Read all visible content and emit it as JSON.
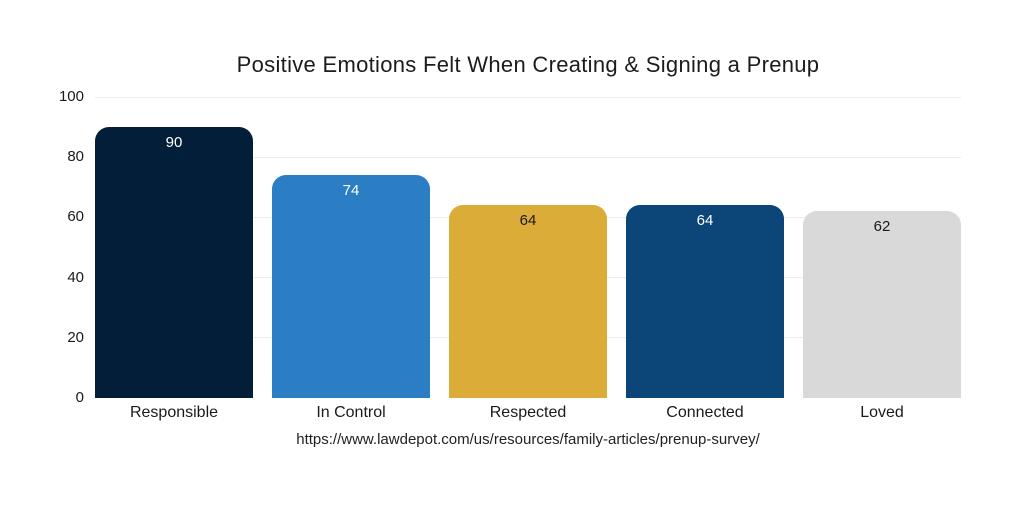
{
  "chart_data": {
    "type": "bar",
    "title": "Positive Emotions Felt When Creating & Signing a Prenup",
    "categories": [
      "Responsible",
      "In Control",
      "Respected",
      "Connected",
      "Loved"
    ],
    "values": [
      90,
      74,
      64,
      64,
      62
    ],
    "bar_colors": [
      "#021e38",
      "#2b7dc4",
      "#dcac38",
      "#0c4578",
      "#d9d9d9"
    ],
    "value_label_colors": [
      "#ffffff",
      "#ffffff",
      "#1a1a1a",
      "#ffffff",
      "#1a1a1a"
    ],
    "y_ticks": [
      100,
      80,
      60,
      40,
      20,
      0
    ],
    "ylim": [
      0,
      100
    ],
    "grid": "horizontal-only",
    "legend": "none",
    "background": "#ffffff",
    "gridline_color": "#ececec",
    "source_url": "https://www.lawdepot.com/us/resources/family-articles/prenup-survey/"
  }
}
